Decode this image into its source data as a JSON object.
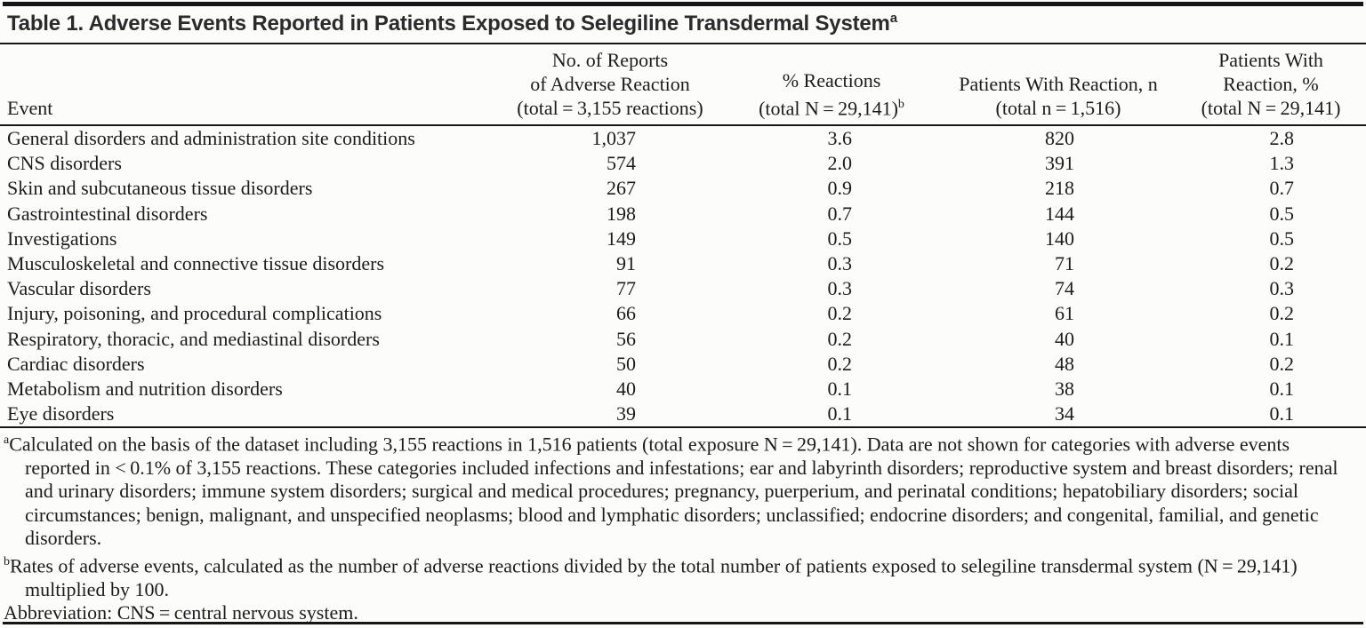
{
  "page": {
    "background_color": "#fcfcfb",
    "rule_color": "#161616",
    "text_color": "#1c1c1c"
  },
  "title": {
    "text": "Table 1. Adverse Events Reported in Patients Exposed to Selegiline Transdermal System",
    "footnote_marker": "a"
  },
  "table": {
    "columns": [
      {
        "id": "event",
        "lines": [
          "Event"
        ]
      },
      {
        "id": "reports",
        "lines": [
          "No. of Reports",
          "of Adverse Reaction",
          "(total = 3,155 reactions)"
        ]
      },
      {
        "id": "pct-reactions",
        "lines": [
          "% Reactions",
          "(total N = 29,141)"
        ],
        "footnote_marker": "b"
      },
      {
        "id": "patients-n",
        "lines": [
          "Patients With Reaction, n",
          "(total n = 1,516)"
        ]
      },
      {
        "id": "patients-pct",
        "lines": [
          "Patients With",
          "Reaction, %",
          "(total N = 29,141)"
        ]
      }
    ],
    "rows": [
      [
        "General disorders and administration site conditions",
        "1,037",
        "3.6",
        "820",
        "2.8"
      ],
      [
        "CNS disorders",
        "574",
        "2.0",
        "391",
        "1.3"
      ],
      [
        "Skin and subcutaneous tissue disorders",
        "267",
        "0.9",
        "218",
        "0.7"
      ],
      [
        "Gastrointestinal disorders",
        "198",
        "0.7",
        "144",
        "0.5"
      ],
      [
        "Investigations",
        "149",
        "0.5",
        "140",
        "0.5"
      ],
      [
        "Musculoskeletal and connective tissue disorders",
        "91",
        "0.3",
        "71",
        "0.2"
      ],
      [
        "Vascular disorders",
        "77",
        "0.3",
        "74",
        "0.3"
      ],
      [
        "Injury, poisoning, and procedural complications",
        "66",
        "0.2",
        "61",
        "0.2"
      ],
      [
        "Respiratory, thoracic, and mediastinal disorders",
        "56",
        "0.2",
        "40",
        "0.1"
      ],
      [
        "Cardiac disorders",
        "50",
        "0.2",
        "48",
        "0.2"
      ],
      [
        "Metabolism and nutrition disorders",
        "40",
        "0.1",
        "38",
        "0.1"
      ],
      [
        "Eye disorders",
        "39",
        "0.1",
        "34",
        "0.1"
      ]
    ]
  },
  "footnotes": [
    {
      "marker": "a",
      "text": "Calculated on the basis of the dataset including 3,155 reactions in 1,516 patients (total exposure N = 29,141). Data are not shown for categories with adverse events reported in < 0.1% of 3,155 reactions. These categories included infections and infestations; ear and labyrinth disorders; reproductive system and breast disorders; renal and urinary disorders; immune system disorders; surgical and medical procedures; pregnancy, puerperium, and perinatal conditions; hepatobiliary disorders; social circumstances; benign, malignant, and unspecified neoplasms; blood and lymphatic disorders; unclassified; endocrine disorders; and congenital, familial, and genetic disorders."
    },
    {
      "marker": "b",
      "text": "Rates of adverse events, calculated as the number of adverse reactions divided by the total number of patients exposed to selegiline transdermal system (N = 29,141) multiplied by 100."
    },
    {
      "marker": "",
      "text": "Abbreviation: CNS = central nervous system."
    }
  ]
}
